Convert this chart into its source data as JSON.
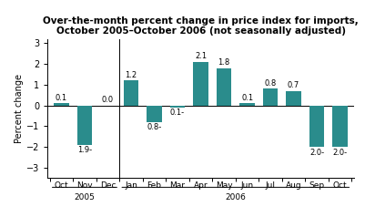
{
  "categories": [
    "Oct",
    "Nov",
    "Dec",
    "Jan",
    "Feb",
    "Mar",
    "Apr",
    "May",
    "Jun",
    "Jul",
    "Aug",
    "Sep",
    "Oct"
  ],
  "values": [
    0.1,
    -1.9,
    0.0,
    1.2,
    -0.8,
    -0.1,
    2.1,
    1.8,
    0.1,
    0.8,
    0.7,
    -2.0,
    -2.0
  ],
  "bar_color": "#2A8C8C",
  "title_line1": "Over-the-month percent change in price index for imports,",
  "title_line2": "October 2005–October 2006 (not seasonally adjusted)",
  "ylabel": "Percent change",
  "ylim": [
    -3.5,
    3.2
  ],
  "yticks": [
    -3,
    -2,
    -1,
    0,
    1,
    2,
    3
  ],
  "bar_labels": [
    "0.1",
    "1.9-",
    "0.0",
    "1.2",
    "0.8-",
    "0.1-",
    "2.1",
    "1.8",
    "0.1",
    "0.8",
    "0.7",
    "2.0-",
    "2.0-"
  ]
}
